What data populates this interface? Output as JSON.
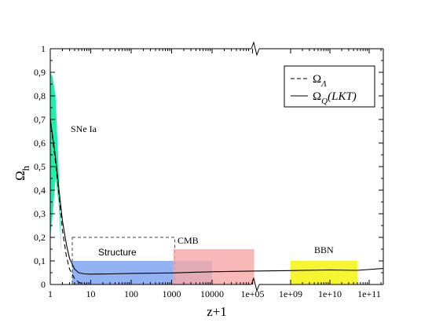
{
  "chart_data": {
    "type": "line",
    "xlabel": "z+1",
    "ylabel": "Ω",
    "ylabel_sub": "h",
    "xscale": "log",
    "axis_break": "between 1e+05 and 1e+09",
    "ylim": [
      0,
      1
    ],
    "yticks": [
      "0",
      "0,1",
      "0,2",
      "0,3",
      "0,4",
      "0,5",
      "0,6",
      "0,7",
      "0,8",
      "0,9",
      "1"
    ],
    "xticks_left": [
      {
        "value": 1,
        "label": "1"
      },
      {
        "value": 10,
        "label": "10"
      },
      {
        "value": 100,
        "label": "100"
      },
      {
        "value": 1000,
        "label": "1000"
      },
      {
        "value": 10000,
        "label": "10000"
      },
      {
        "value": 100000,
        "label": "1e+05"
      }
    ],
    "xticks_right": [
      {
        "value": 1000000000,
        "label": "1e+09"
      },
      {
        "value": 10000000000,
        "label": "1e+10"
      },
      {
        "value": 100000000000,
        "label": "1e+11"
      }
    ],
    "legend": {
      "position": "top-right",
      "entries": [
        {
          "symbol": "Ω",
          "sub": "Λ",
          "style": "dashed"
        },
        {
          "symbol": "Ω",
          "sub": "Q",
          "suffix": "(LKT)",
          "style": "solid"
        }
      ]
    },
    "regions": [
      {
        "label": "SNe Ia",
        "color": "#1ef0a8",
        "x_range": [
          1,
          1.9
        ],
        "y_upper": [
          0.9,
          0.88,
          0.8,
          0.5,
          0.12
        ],
        "y_lower": [
          0.2,
          0.3,
          0.45,
          0.35,
          0.12
        ]
      },
      {
        "label": "Structure",
        "color": "#7fa5f2",
        "x_range": [
          3.5,
          10000
        ],
        "y_range": [
          0,
          0.1
        ],
        "dashed_box_y": [
          0,
          0.2
        ],
        "dashed_box_x": [
          3.5,
          1200
        ]
      },
      {
        "label": "CMB",
        "color": "#f7a8a8",
        "x_range": [
          1100,
          110000
        ],
        "y_range": [
          0,
          0.15
        ]
      },
      {
        "label": "BBN",
        "color": "#f5f530",
        "x_range": [
          1000000000,
          50000000000
        ],
        "y_range": [
          0,
          0.1
        ]
      }
    ],
    "series": [
      {
        "name": "Ω_Λ",
        "style": "dashed",
        "x": [
          1,
          1.3,
          1.6,
          2,
          2.5,
          3,
          4,
          5,
          6,
          8
        ],
        "y": [
          0.7,
          0.54,
          0.4,
          0.23,
          0.12,
          0.065,
          0.025,
          0.01,
          0.004,
          0
        ]
      },
      {
        "name": "Ω_Q (LKT)",
        "style": "solid",
        "x": [
          1,
          1.3,
          1.6,
          2,
          2.5,
          3,
          4,
          5,
          7,
          10,
          30,
          100,
          1000,
          10000,
          100000,
          1000000000,
          10000000000,
          50000000000,
          300000000000
        ],
        "y": [
          0.7,
          0.56,
          0.42,
          0.27,
          0.17,
          0.11,
          0.065,
          0.05,
          0.045,
          0.044,
          0.045,
          0.047,
          0.049,
          0.054,
          0.057,
          0.059,
          0.062,
          0.06,
          0.068
        ]
      }
    ]
  }
}
